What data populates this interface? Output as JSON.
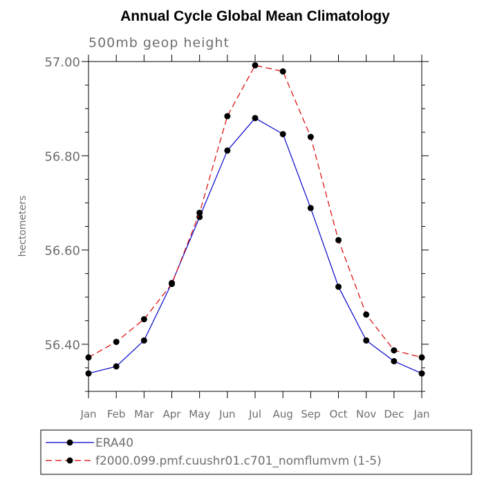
{
  "chart_data": {
    "type": "line",
    "title": "Annual Cycle Global Mean Climatology",
    "subtitle": "500mb geop height",
    "xlabel": "",
    "ylabel": "hectometers",
    "categories": [
      "Jan",
      "Feb",
      "Mar",
      "Apr",
      "May",
      "Jun",
      "Jul",
      "Aug",
      "Sep",
      "Oct",
      "Nov",
      "Dec",
      "Jan"
    ],
    "ylim": [
      56.3,
      57.0
    ],
    "yticks": [
      "57.00",
      "56.80",
      "56.60",
      "56.40"
    ],
    "grid": false,
    "legend_position": "bottom",
    "series": [
      {
        "name": "ERA40",
        "color": "#0000cc",
        "line_style": "solid",
        "marker": "filled-circle",
        "values": [
          56.338,
          56.353,
          56.408,
          56.53,
          56.67,
          56.811,
          56.88,
          56.846,
          56.689,
          56.522,
          56.408,
          56.364,
          56.338
        ]
      },
      {
        "name": "f2000.099.pmf.cuushr01.c701_nomflumvm (1-5)",
        "color": "#dd0000",
        "line_style": "dashed",
        "marker": "filled-circle",
        "values": [
          56.372,
          56.405,
          56.453,
          56.528,
          56.679,
          56.884,
          56.992,
          56.979,
          56.84,
          56.621,
          56.463,
          56.387,
          56.372
        ]
      }
    ]
  }
}
